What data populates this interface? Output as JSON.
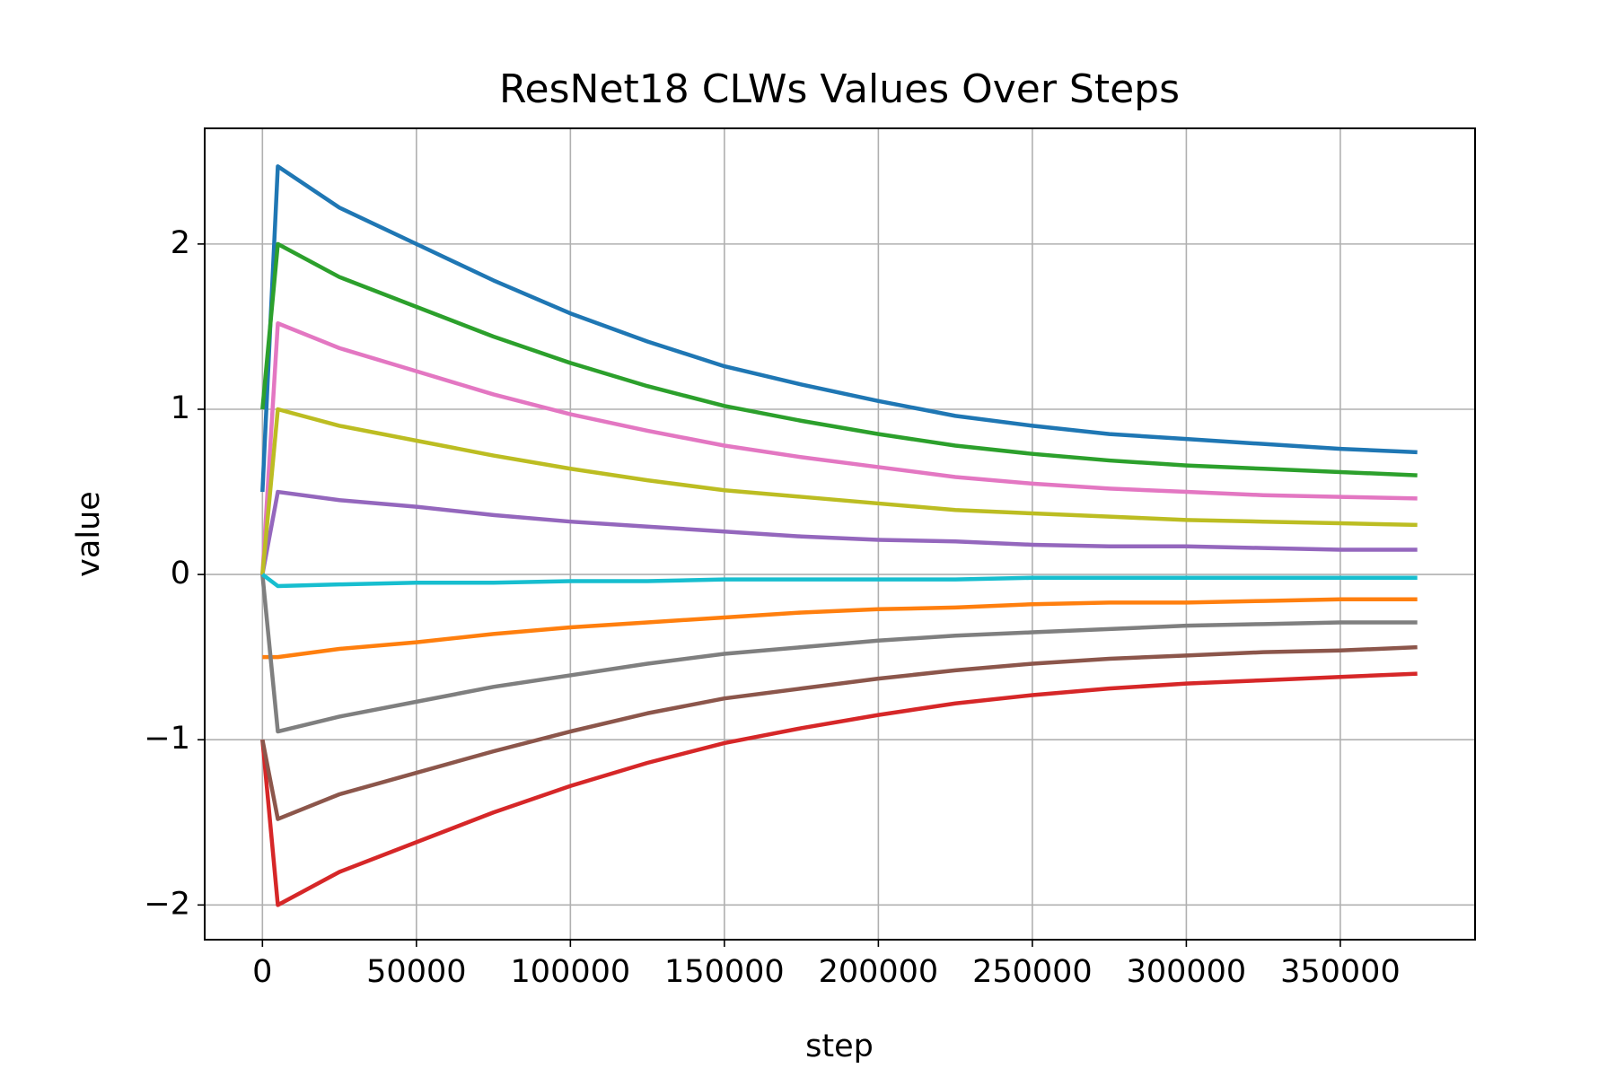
{
  "chart_data": {
    "type": "line",
    "title": "ResNet18 CLWs Values Over Steps",
    "x_label": "step",
    "y_label": "value",
    "x": [
      0,
      5000,
      25000,
      50000,
      75000,
      100000,
      125000,
      150000,
      175000,
      200000,
      225000,
      250000,
      275000,
      300000,
      325000,
      350000,
      375000
    ],
    "series": [
      {
        "color": "#1f77b4",
        "values": [
          0.5,
          2.47,
          2.22,
          2.0,
          1.78,
          1.58,
          1.41,
          1.26,
          1.15,
          1.05,
          0.96,
          0.9,
          0.85,
          0.82,
          0.79,
          0.76,
          0.74
        ]
      },
      {
        "color": "#ff7f0e",
        "values": [
          -0.5,
          -0.5,
          -0.45,
          -0.41,
          -0.36,
          -0.32,
          -0.29,
          -0.26,
          -0.23,
          -0.21,
          -0.2,
          -0.18,
          -0.17,
          -0.17,
          -0.16,
          -0.15,
          -0.15
        ]
      },
      {
        "color": "#2ca02c",
        "values": [
          1.0,
          2.0,
          1.8,
          1.62,
          1.44,
          1.28,
          1.14,
          1.02,
          0.93,
          0.85,
          0.78,
          0.73,
          0.69,
          0.66,
          0.64,
          0.62,
          0.6
        ]
      },
      {
        "color": "#d62728",
        "values": [
          -1.0,
          -2.0,
          -1.8,
          -1.62,
          -1.44,
          -1.28,
          -1.14,
          -1.02,
          -0.93,
          -0.85,
          -0.78,
          -0.73,
          -0.69,
          -0.66,
          -0.64,
          -0.62,
          -0.6
        ]
      },
      {
        "color": "#9467bd",
        "values": [
          0,
          0.5,
          0.45,
          0.41,
          0.36,
          0.32,
          0.29,
          0.26,
          0.23,
          0.21,
          0.2,
          0.18,
          0.17,
          0.17,
          0.16,
          0.15,
          0.15
        ]
      },
      {
        "color": "#8c564b",
        "values": [
          -1.0,
          -1.48,
          -1.33,
          -1.2,
          -1.07,
          -0.95,
          -0.84,
          -0.75,
          -0.69,
          -0.63,
          -0.58,
          -0.54,
          -0.51,
          -0.49,
          -0.47,
          -0.46,
          -0.44
        ]
      },
      {
        "color": "#e377c2",
        "values": [
          0,
          1.52,
          1.37,
          1.23,
          1.09,
          0.97,
          0.87,
          0.78,
          0.71,
          0.65,
          0.59,
          0.55,
          0.52,
          0.5,
          0.48,
          0.47,
          0.46
        ]
      },
      {
        "color": "#7f7f7f",
        "values": [
          0,
          -0.95,
          -0.86,
          -0.77,
          -0.68,
          -0.61,
          -0.54,
          -0.48,
          -0.44,
          -0.4,
          -0.37,
          -0.35,
          -0.33,
          -0.31,
          -0.3,
          -0.29,
          -0.29
        ]
      },
      {
        "color": "#bcbd22",
        "values": [
          0,
          1.0,
          0.9,
          0.81,
          0.72,
          0.64,
          0.57,
          0.51,
          0.47,
          0.43,
          0.39,
          0.37,
          0.35,
          0.33,
          0.32,
          0.31,
          0.3
        ]
      },
      {
        "color": "#17becf",
        "values": [
          0,
          -0.07,
          -0.06,
          -0.05,
          -0.05,
          -0.04,
          -0.04,
          -0.03,
          -0.03,
          -0.03,
          -0.03,
          -0.02,
          -0.02,
          -0.02,
          -0.02,
          -0.02,
          -0.02
        ]
      }
    ],
    "xlim": [
      -18750,
      393750
    ],
    "ylim": [
      -2.21,
      2.7
    ],
    "xticks": [
      0,
      50000,
      100000,
      150000,
      200000,
      250000,
      300000,
      350000
    ],
    "yticks": [
      {
        "value": -2,
        "label": "−2"
      },
      {
        "value": -1,
        "label": "−1"
      },
      0,
      1,
      2
    ],
    "grid": true
  }
}
